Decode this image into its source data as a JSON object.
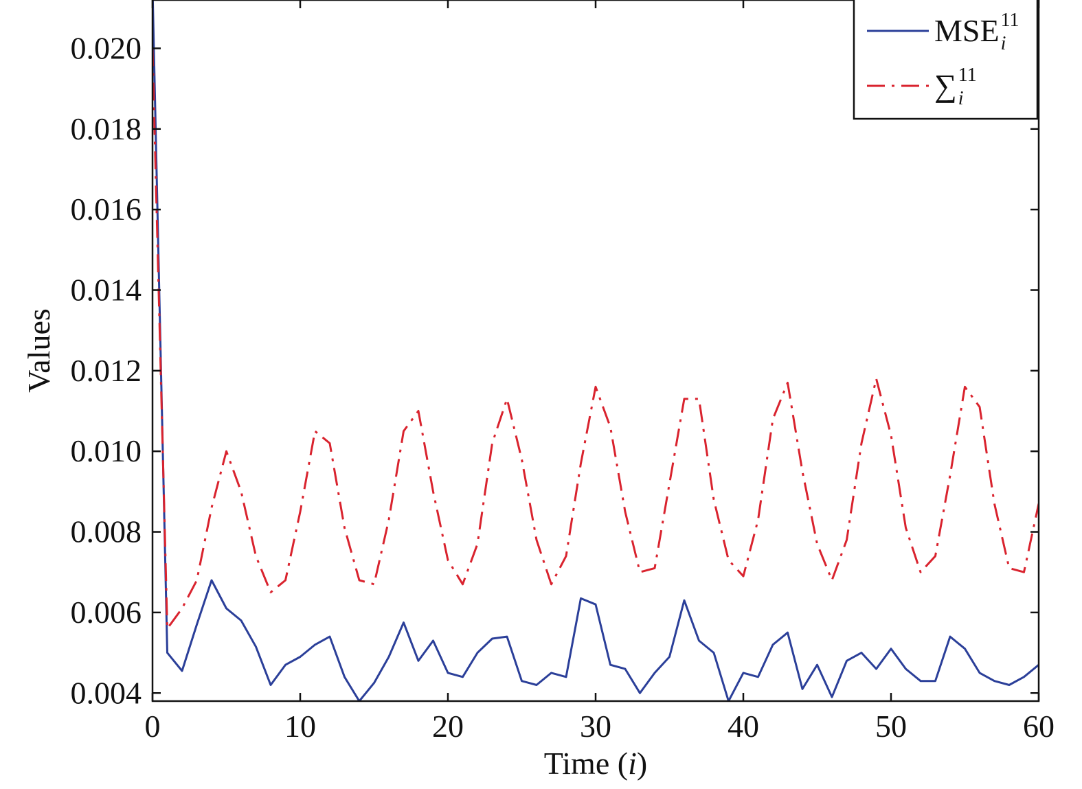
{
  "chart_data": {
    "type": "line",
    "xlabel": "Time (i)",
    "xlabel_parts": {
      "prefix": "Time (",
      "var": "i",
      "suffix": ")"
    },
    "ylabel": "Values",
    "xlim": [
      0,
      60
    ],
    "ylim": [
      0.0038,
      0.0212
    ],
    "xticks": [
      0,
      10,
      20,
      30,
      40,
      50,
      60
    ],
    "xtick_labels": [
      "0",
      "10",
      "20",
      "30",
      "40",
      "50",
      "60"
    ],
    "yticks": [
      0.004,
      0.006,
      0.008,
      0.01,
      0.012,
      0.014,
      0.016,
      0.018,
      0.02
    ],
    "ytick_labels": [
      "0.004",
      "0.006",
      "0.008",
      "0.010",
      "0.012",
      "0.014",
      "0.016",
      "0.018",
      "0.020"
    ],
    "grid": false,
    "legend_position": "top-right",
    "x": [
      0,
      1,
      2,
      3,
      4,
      5,
      6,
      7,
      8,
      9,
      10,
      11,
      12,
      13,
      14,
      15,
      16,
      17,
      18,
      19,
      20,
      21,
      22,
      23,
      24,
      25,
      26,
      27,
      28,
      29,
      30,
      31,
      32,
      33,
      34,
      35,
      36,
      37,
      38,
      39,
      40,
      41,
      42,
      43,
      44,
      45,
      46,
      47,
      48,
      49,
      50,
      51,
      52,
      53,
      54,
      55,
      56,
      57,
      58,
      59,
      60
    ],
    "series": [
      {
        "name": "MSE_i^11",
        "legend": {
          "base": "MSE",
          "sup": "11",
          "sub": "i"
        },
        "color": "#2b3f99",
        "dash": "solid",
        "values": [
          0.0215,
          0.005,
          0.00455,
          0.0057,
          0.0068,
          0.0061,
          0.0058,
          0.00515,
          0.0042,
          0.0047,
          0.0049,
          0.0052,
          0.0054,
          0.0044,
          0.0038,
          0.00425,
          0.0049,
          0.00575,
          0.0048,
          0.0053,
          0.0045,
          0.0044,
          0.005,
          0.00535,
          0.0054,
          0.0043,
          0.0042,
          0.0045,
          0.0044,
          0.00635,
          0.0062,
          0.0047,
          0.0046,
          0.004,
          0.0045,
          0.0049,
          0.0063,
          0.0053,
          0.005,
          0.0038,
          0.0045,
          0.0044,
          0.0052,
          0.0055,
          0.0041,
          0.0047,
          0.0039,
          0.0048,
          0.005,
          0.0046,
          0.0051,
          0.0046,
          0.0043,
          0.0043,
          0.0054,
          0.0051,
          0.0045,
          0.0043,
          0.0042,
          0.0044,
          0.0047
        ]
      },
      {
        "name": "Σ_i^11",
        "legend": {
          "base": "∑",
          "sup": "11",
          "sub": "i"
        },
        "color": "#d9232e",
        "dash": "dashdot",
        "values": [
          0.02,
          0.0056,
          0.0061,
          0.0068,
          0.0086,
          0.01,
          0.009,
          0.0074,
          0.0065,
          0.0068,
          0.0085,
          0.0105,
          0.0102,
          0.0081,
          0.0068,
          0.0067,
          0.0083,
          0.0105,
          0.011,
          0.009,
          0.0073,
          0.0067,
          0.0077,
          0.0102,
          0.0113,
          0.0098,
          0.0078,
          0.0067,
          0.0074,
          0.0097,
          0.0116,
          0.0106,
          0.0085,
          0.007,
          0.0071,
          0.0092,
          0.0113,
          0.0113,
          0.0088,
          0.0073,
          0.0069,
          0.0083,
          0.0108,
          0.0117,
          0.0095,
          0.0077,
          0.0068,
          0.0078,
          0.0102,
          0.0118,
          0.0104,
          0.0081,
          0.007,
          0.0074,
          0.0094,
          0.0116,
          0.0111,
          0.0087,
          0.0071,
          0.007,
          0.0087
        ]
      }
    ]
  }
}
